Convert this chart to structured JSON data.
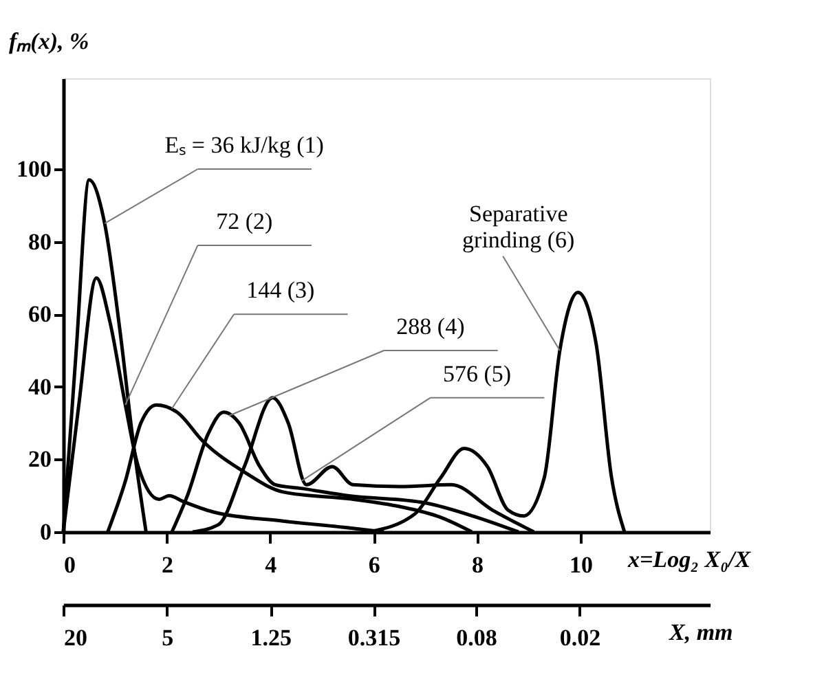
{
  "chart_data": {
    "type": "line",
    "xlabel": "x=Log₂ X₀/X",
    "ylabel": "fₘ(x), %",
    "x2label": "X, mm",
    "xlim": [
      0,
      12.5
    ],
    "xticks": [
      0,
      2,
      4,
      6,
      8,
      10
    ],
    "ylim": [
      0,
      125
    ],
    "yticks": [
      0,
      20,
      40,
      60,
      80,
      100
    ],
    "x2lim": [
      20,
      0.0035
    ],
    "x2ticks": [
      20,
      5,
      1.25,
      0.315,
      0.08,
      0.02
    ],
    "log": "x2",
    "grid": false,
    "legend": false,
    "marker": "none",
    "line_style": "solid",
    "series": [
      {
        "color": "#000000",
        "x": [
          0,
          0.25,
          0.5,
          0.8,
          1.1,
          1.35,
          1.6
        ],
        "values": [
          0,
          50,
          97,
          85,
          55,
          25,
          0
        ]
      },
      {
        "color": "#000000",
        "x": [
          0,
          0.3,
          0.64,
          0.9,
          1.2,
          1.45,
          1.85,
          2.05,
          2.3,
          2.9,
          4.25,
          5.6,
          6.2
        ],
        "values": [
          0,
          35,
          70,
          58,
          35,
          18,
          9,
          10,
          8.5,
          5.5,
          3,
          1,
          0
        ]
      },
      {
        "color": "#000000",
        "x": [
          0.86,
          1.2,
          1.5,
          1.8,
          2.2,
          2.7,
          3.5,
          4.25,
          5.6,
          6.5,
          7.3,
          7.9
        ],
        "values": [
          0,
          14,
          30,
          35,
          33,
          25,
          16.5,
          11,
          9,
          7,
          4,
          0
        ]
      },
      {
        "color": "#000000",
        "x": [
          2.1,
          2.4,
          2.8,
          3.1,
          3.4,
          3.8,
          4.1,
          4.6,
          5.5,
          7,
          8,
          8.8
        ],
        "values": [
          0,
          10,
          27,
          33,
          30,
          18,
          13,
          12,
          10,
          8,
          4,
          0
        ]
      },
      {
        "color": "#000000",
        "x": [
          2.5,
          3,
          3.5,
          4.05,
          4.35,
          4.7,
          5.2,
          5.6,
          6.5,
          7.5,
          8.3,
          9.1
        ],
        "values": [
          0,
          2,
          18,
          37,
          30,
          13,
          18,
          13,
          12.5,
          13,
          6,
          0
        ]
      },
      {
        "color": "#000000",
        "x": [
          5.9,
          6.8,
          7.3,
          7.75,
          8.2,
          8.6,
          8.9,
          9.3,
          9.6,
          9.95,
          10.3,
          10.6,
          10.85
        ],
        "values": [
          0,
          5,
          15,
          23,
          18,
          6,
          4.4,
          15,
          50,
          66,
          52,
          15,
          0
        ]
      }
    ],
    "annotations": [
      {
        "text": "Eₛ = 36 kJ/kg (1)",
        "x": 0.8,
        "y": 85
      },
      {
        "text": "72 (2)",
        "x": 1.2,
        "y": 35
      },
      {
        "text": "144 (3)",
        "x": 2.1,
        "y": 34
      },
      {
        "text": "288 (4)",
        "x": 3.2,
        "y": 32
      },
      {
        "text": "576 (5)",
        "x": 4.6,
        "y": 14
      },
      {
        "text": "Separative\ngrinding (6)",
        "x": 9.6,
        "y": 50
      }
    ]
  }
}
